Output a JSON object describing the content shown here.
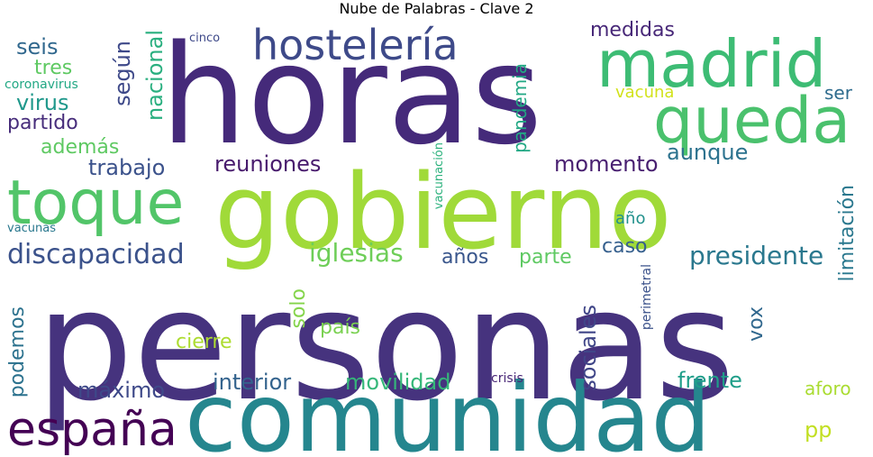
{
  "title": "Nube de Palabras - Clave 2",
  "colors": {
    "background": "#ffffff",
    "title": "#000000"
  },
  "words": [
    {
      "text": "horas",
      "color": "#452a7a"
    },
    {
      "text": "personas",
      "color": "#46337e"
    },
    {
      "text": "gobierno",
      "color": "#a0da39"
    },
    {
      "text": "comunidad",
      "color": "#25868e"
    },
    {
      "text": "madrid",
      "color": "#3dbc74"
    },
    {
      "text": "queda",
      "color": "#4ac16d"
    },
    {
      "text": "toque",
      "color": "#52c569"
    },
    {
      "text": "hostelería",
      "color": "#3e4a89"
    },
    {
      "text": "españa",
      "color": "#440154"
    },
    {
      "text": "discapacidad",
      "color": "#3b528b"
    },
    {
      "text": "iglesias",
      "color": "#6ece58"
    },
    {
      "text": "presidente",
      "color": "#2a788e"
    },
    {
      "text": "reuniones",
      "color": "#481b6d"
    },
    {
      "text": "trabajo",
      "color": "#3b528b"
    },
    {
      "text": "momento",
      "color": "#481f70"
    },
    {
      "text": "aunque",
      "color": "#2c728e"
    },
    {
      "text": "interior",
      "color": "#33638d"
    },
    {
      "text": "movilidad",
      "color": "#35b779"
    },
    {
      "text": "frente",
      "color": "#1f9e89"
    },
    {
      "text": "máximo",
      "color": "#3e4989"
    },
    {
      "text": "sociales",
      "color": "#404688"
    },
    {
      "text": "cierre",
      "color": "#addc30"
    },
    {
      "text": "país",
      "color": "#7ad151"
    },
    {
      "text": "solo",
      "color": "#84d44b"
    },
    {
      "text": "vox",
      "color": "#31688e"
    },
    {
      "text": "limitación",
      "color": "#2a788e"
    },
    {
      "text": "podemos",
      "color": "#2c728e"
    },
    {
      "text": "años",
      "color": "#39568c"
    },
    {
      "text": "parte",
      "color": "#5ec962"
    },
    {
      "text": "caso",
      "color": "#355f8d"
    },
    {
      "text": "año",
      "color": "#21918c"
    },
    {
      "text": "seis",
      "color": "#31688e"
    },
    {
      "text": "tres",
      "color": "#5ec962"
    },
    {
      "text": "virus",
      "color": "#1f988b"
    },
    {
      "text": "partido",
      "color": "#472d7b"
    },
    {
      "text": "además",
      "color": "#5ec962"
    },
    {
      "text": "según",
      "color": "#3e4989"
    },
    {
      "text": "nacional",
      "color": "#29af7f"
    },
    {
      "text": "pandemia",
      "color": "#22a884"
    },
    {
      "text": "vacuna",
      "color": "#d2e21b"
    },
    {
      "text": "medidas",
      "color": "#482878"
    },
    {
      "text": "ser",
      "color": "#2f6c8e"
    },
    {
      "text": "cinco",
      "color": "#3e4989"
    },
    {
      "text": "coronavirus",
      "color": "#22a884"
    },
    {
      "text": "vacunas",
      "color": "#2a788e"
    },
    {
      "text": "vacunación",
      "color": "#2db27d"
    },
    {
      "text": "perimetral",
      "color": "#3b528b"
    },
    {
      "text": "crisis",
      "color": "#482576"
    },
    {
      "text": "aforo",
      "color": "#aadc32"
    },
    {
      "text": "pp",
      "color": "#c2df23"
    }
  ]
}
